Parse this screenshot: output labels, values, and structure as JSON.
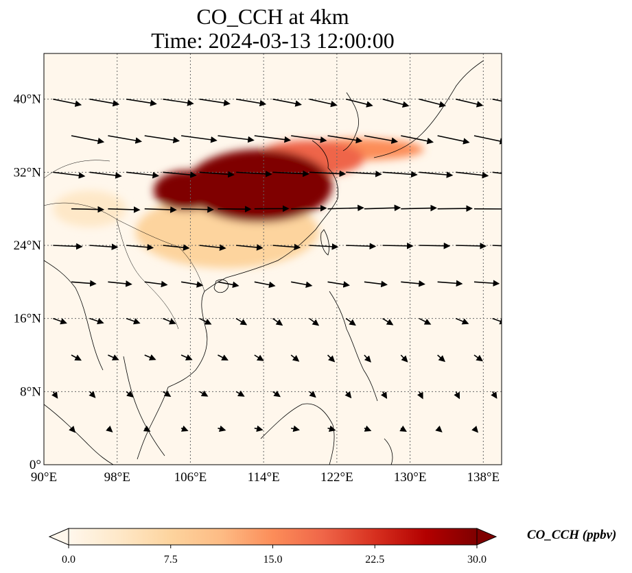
{
  "title_line1": "CO_CCH at 4km",
  "title_line2": "Time: 2024-03-13 12:00:00",
  "colorbar": {
    "label": "CO_CCH (ppbv)",
    "colormap": "OrRd",
    "min": 0,
    "max": 30,
    "extend": "both",
    "ticks": [
      "0.0",
      "7.5",
      "15.0",
      "22.5",
      "30.0"
    ],
    "colors": [
      "#fff7ec",
      "#fee8c8",
      "#fdd49e",
      "#fdbb84",
      "#fc8d59",
      "#ef6548",
      "#d7301f",
      "#b30000",
      "#7f0000"
    ]
  },
  "map": {
    "lon_range": [
      90,
      140
    ],
    "lat_range": [
      0,
      45
    ],
    "gridlines": true,
    "x_ticks": [
      {
        "value": 90,
        "label": "90°E"
      },
      {
        "value": 98,
        "label": "98°E"
      },
      {
        "value": 106,
        "label": "106°E"
      },
      {
        "value": 114,
        "label": "114°E"
      },
      {
        "value": 122,
        "label": "122°E"
      },
      {
        "value": 130,
        "label": "130°E"
      },
      {
        "value": 138,
        "label": "138°E"
      }
    ],
    "y_ticks": [
      {
        "value": 0,
        "label": "0°"
      },
      {
        "value": 8,
        "label": "8°N"
      },
      {
        "value": 16,
        "label": "16°N"
      },
      {
        "value": 24,
        "label": "24°N"
      },
      {
        "value": 32,
        "label": "32°N"
      },
      {
        "value": 40,
        "label": "40°N"
      }
    ],
    "plumes": [
      {
        "name": "central-china-core",
        "lon": 113.5,
        "lat": 30.5,
        "rx_deg": 8,
        "ry_deg": 4,
        "value": 30
      },
      {
        "name": "sichuan-west-lobe",
        "lon": 105.5,
        "lat": 30,
        "rx_deg": 3.5,
        "ry_deg": 2.2,
        "value": 30
      },
      {
        "name": "yangtze-band",
        "lon": 119,
        "lat": 33.5,
        "rx_deg": 6,
        "ry_deg": 2,
        "value": 20
      },
      {
        "name": "east-sea-streak",
        "lon": 124.5,
        "lat": 34.5,
        "rx_deg": 7,
        "ry_deg": 1.2,
        "value": 16
      },
      {
        "name": "south-china-haze",
        "lon": 110,
        "lat": 25.5,
        "rx_deg": 10,
        "ry_deg": 4,
        "value": 6
      },
      {
        "name": "bay-of-bengal-haze",
        "lon": 95,
        "lat": 28,
        "rx_deg": 4,
        "ry_deg": 2,
        "value": 4
      }
    ],
    "wind_rows": [
      {
        "lat": 40,
        "u": 5,
        "v": -1
      },
      {
        "lat": 36,
        "u": 6,
        "v": -1
      },
      {
        "lat": 32,
        "u": 6,
        "v": -0.5
      },
      {
        "lat": 28,
        "u": 6,
        "v": 0
      },
      {
        "lat": 24,
        "u": 5,
        "v": -0.3
      },
      {
        "lat": 20,
        "u": 4,
        "v": -0.5
      },
      {
        "lat": 16,
        "u": 2,
        "v": -1
      },
      {
        "lat": 12,
        "u": 1.5,
        "v": -1
      },
      {
        "lat": 8,
        "u": 1,
        "v": -1
      },
      {
        "lat": 4,
        "u": 1,
        "v": -0.5
      }
    ]
  }
}
